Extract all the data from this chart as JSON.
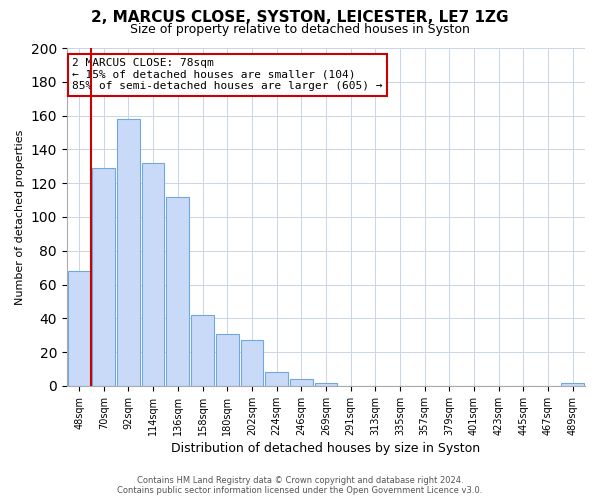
{
  "title": "2, MARCUS CLOSE, SYSTON, LEICESTER, LE7 1ZG",
  "subtitle": "Size of property relative to detached houses in Syston",
  "xlabel": "Distribution of detached houses by size in Syston",
  "ylabel": "Number of detached properties",
  "bar_labels": [
    "48sqm",
    "70sqm",
    "92sqm",
    "114sqm",
    "136sqm",
    "158sqm",
    "180sqm",
    "202sqm",
    "224sqm",
    "246sqm",
    "269sqm",
    "291sqm",
    "313sqm",
    "335sqm",
    "357sqm",
    "379sqm",
    "401sqm",
    "423sqm",
    "445sqm",
    "467sqm",
    "489sqm"
  ],
  "bar_values": [
    68,
    129,
    158,
    132,
    112,
    42,
    31,
    27,
    8,
    4,
    2,
    0,
    0,
    0,
    0,
    0,
    0,
    0,
    0,
    0,
    2
  ],
  "bar_color": "#c9daf8",
  "bar_edge_color": "#6fa8dc",
  "vline_x": 1.0,
  "vline_color": "#cc0000",
  "annotation_title": "2 MARCUS CLOSE: 78sqm",
  "annotation_line1": "← 15% of detached houses are smaller (104)",
  "annotation_line2": "85% of semi-detached houses are larger (605) →",
  "box_edge_color": "#cc0000",
  "ylim": [
    0,
    200
  ],
  "yticks": [
    0,
    20,
    40,
    60,
    80,
    100,
    120,
    140,
    160,
    180,
    200
  ],
  "footer1": "Contains HM Land Registry data © Crown copyright and database right 2024.",
  "footer2": "Contains public sector information licensed under the Open Government Licence v3.0.",
  "bg_color": "#ffffff",
  "grid_color": "#c8d4e8"
}
